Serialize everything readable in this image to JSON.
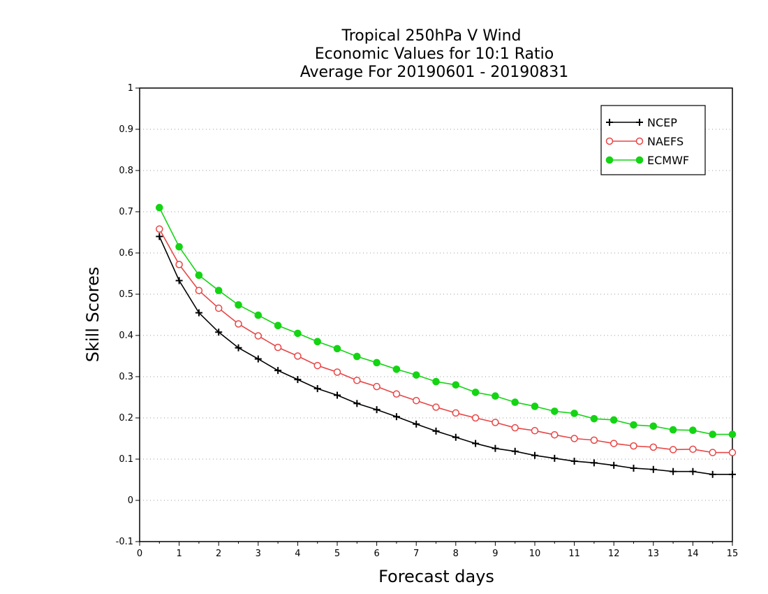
{
  "chart_data": {
    "type": "line",
    "title": [
      "Tropical 250hPa V Wind",
      "Economic Values for 10:1 Ratio",
      "Average For 20190601 - 20190831"
    ],
    "xlabel": "Forecast days",
    "ylabel": "Skill Scores",
    "xlim": [
      0,
      15
    ],
    "ylim": [
      -0.1,
      1
    ],
    "xticks": [
      0,
      1,
      2,
      3,
      4,
      5,
      6,
      7,
      8,
      9,
      10,
      11,
      12,
      13,
      14,
      15
    ],
    "yticks": [
      -0.1,
      0,
      0.1,
      0.2,
      0.3,
      0.4,
      0.5,
      0.6,
      0.7,
      0.8,
      0.9,
      1
    ],
    "ytick_labels": [
      "-0.1",
      "0",
      "0.1",
      "0.2",
      "0.3",
      "0.4",
      "0.5",
      "0.6",
      "0.7",
      "0.8",
      "0.9",
      "1"
    ],
    "grid": "horizontal dotted",
    "legend_position": "top-right",
    "x": [
      0.5,
      1,
      1.5,
      2,
      2.5,
      3,
      3.5,
      4,
      4.5,
      5,
      5.5,
      6,
      6.5,
      7,
      7.5,
      8,
      8.5,
      9,
      9.5,
      10,
      10.5,
      11,
      11.5,
      12,
      12.5,
      13,
      13.5,
      14,
      14.5,
      15
    ],
    "series": [
      {
        "name": "NCEP",
        "color": "#000000",
        "marker": "plus",
        "values": [
          0.64,
          0.533,
          0.455,
          0.408,
          0.37,
          0.343,
          0.315,
          0.293,
          0.271,
          0.255,
          0.235,
          0.22,
          0.203,
          0.185,
          0.168,
          0.153,
          0.138,
          0.126,
          0.119,
          0.109,
          0.102,
          0.095,
          0.091,
          0.085,
          0.078,
          0.075,
          0.07,
          0.07,
          0.063,
          0.063
        ]
      },
      {
        "name": "NAEFS",
        "color": "#e84545",
        "marker": "open-circle",
        "values": [
          0.658,
          0.572,
          0.509,
          0.466,
          0.428,
          0.399,
          0.371,
          0.35,
          0.327,
          0.311,
          0.291,
          0.276,
          0.258,
          0.242,
          0.226,
          0.212,
          0.2,
          0.189,
          0.176,
          0.169,
          0.159,
          0.15,
          0.146,
          0.138,
          0.132,
          0.129,
          0.123,
          0.124,
          0.116,
          0.116
        ]
      },
      {
        "name": "ECMWF",
        "color": "#14d414",
        "marker": "filled-circle",
        "values": [
          0.71,
          0.615,
          0.546,
          0.509,
          0.474,
          0.449,
          0.424,
          0.405,
          0.385,
          0.368,
          0.349,
          0.334,
          0.318,
          0.304,
          0.288,
          0.28,
          0.262,
          0.253,
          0.238,
          0.228,
          0.216,
          0.211,
          0.198,
          0.195,
          0.183,
          0.18,
          0.171,
          0.17,
          0.16,
          0.16
        ]
      }
    ]
  }
}
